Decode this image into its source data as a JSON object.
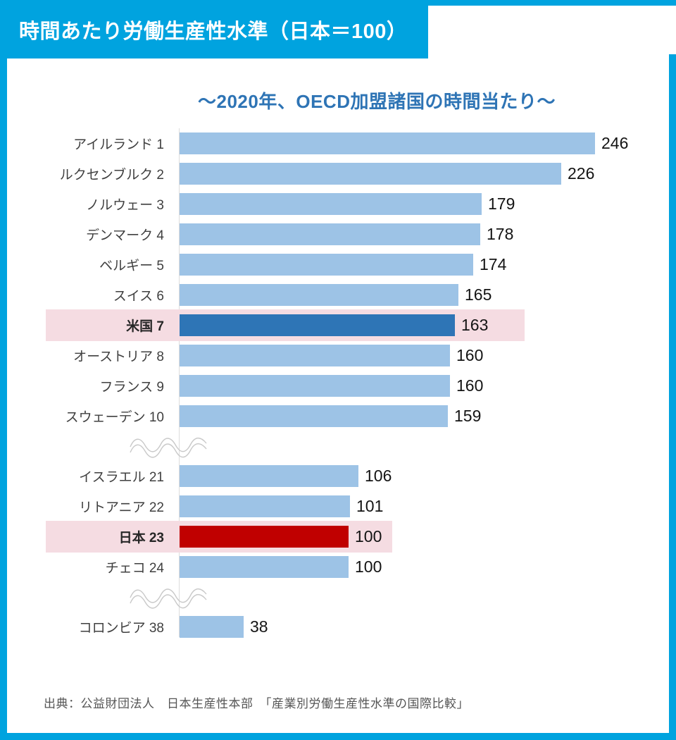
{
  "header": {
    "title": "時間あたり労働生産性水準（日本＝100）"
  },
  "source_note": "出典：公益財団法人　日本生産性本部　「産業別労働生産性水準の国際比較」",
  "colors": {
    "frame_cyan": "#00A3DF",
    "title_blue": "#2E74B5",
    "bar_light_blue": "#9DC3E6",
    "bar_dark_blue": "#2E75B6",
    "bar_red": "#C00000",
    "highlight_pink": "#F5DCE2"
  },
  "chart_data": {
    "type": "bar",
    "orientation": "horizontal",
    "title": "～2020年、OECD加盟諸国の時間当たり～",
    "value_axis_max": 246,
    "grid": false,
    "legend": false,
    "items": [
      {
        "label": "アイルランド 1",
        "value": 246
      },
      {
        "label": "ルクセンブルク 2",
        "value": 226
      },
      {
        "label": "ノルウェー 3",
        "value": 179
      },
      {
        "label": "デンマーク 4",
        "value": 178
      },
      {
        "label": "ベルギー 5",
        "value": 174
      },
      {
        "label": "スイス 6",
        "value": 165
      },
      {
        "label": "米国 7",
        "value": 163,
        "highlight": true,
        "bar_color": "#2E75B6",
        "highlight_color": "#F5DCE2",
        "highlight_width": 680
      },
      {
        "label": "オーストリア 8",
        "value": 160
      },
      {
        "label": "フランス 9",
        "value": 160
      },
      {
        "label": "スウェーデン 10",
        "value": 159,
        "break_after": true
      },
      {
        "label": "イスラエル 21",
        "value": 106
      },
      {
        "label": "リトアニア 22",
        "value": 101
      },
      {
        "label": "日本 23",
        "value": 100,
        "highlight": true,
        "bar_color": "#C00000",
        "highlight_color": "#F5DCE2",
        "highlight_width": 492
      },
      {
        "label": "チェコ 24",
        "value": 100,
        "break_after": true
      },
      {
        "label": "コロンビア 38",
        "value": 38
      }
    ]
  }
}
